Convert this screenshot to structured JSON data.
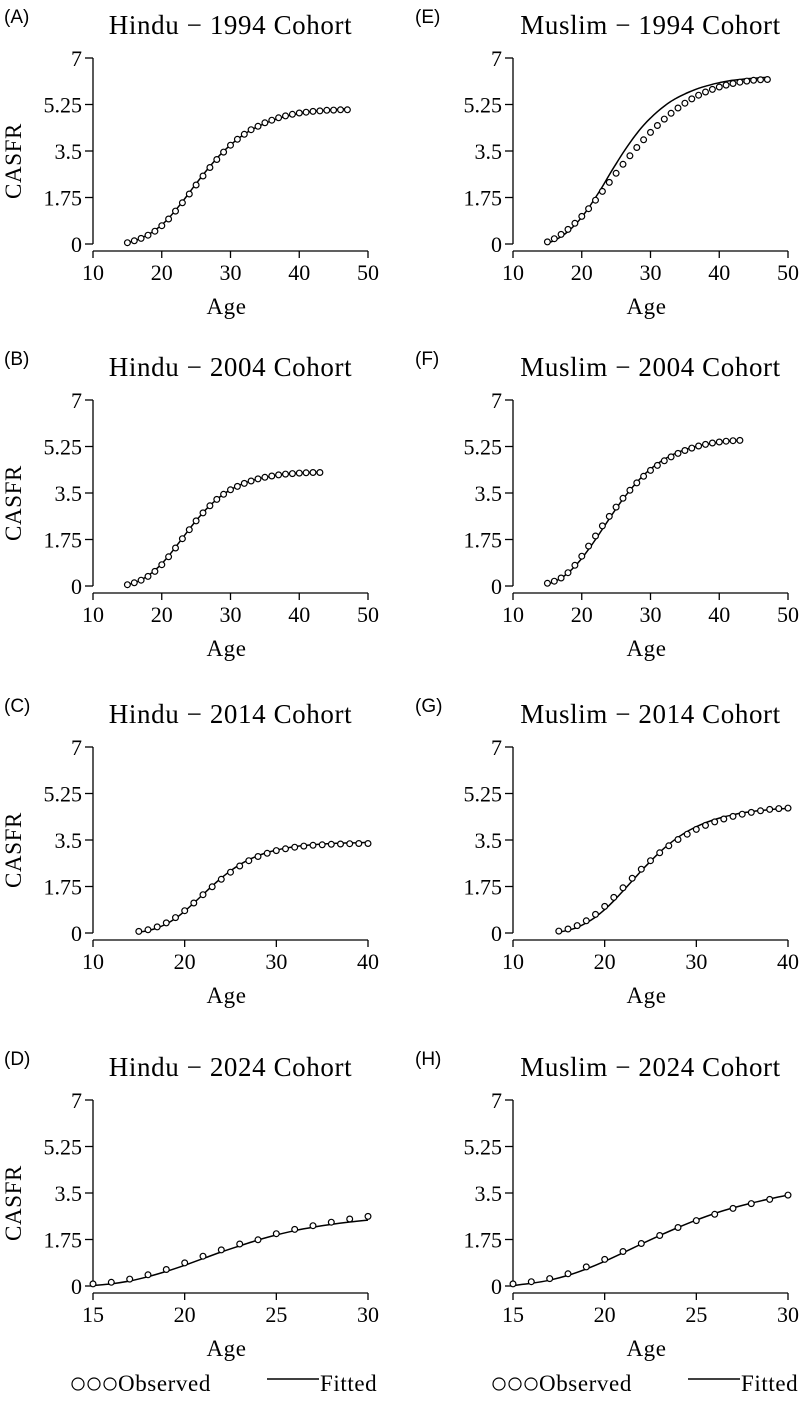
{
  "legend": [
    {
      "observed_label": "Observed",
      "fitted_label": "Fitted"
    },
    {
      "observed_label": "Observed",
      "fitted_label": "Fitted"
    }
  ],
  "chart_data": [
    {
      "panel": "(A)",
      "title": "Hindu − 1994 Cohort",
      "type": "line",
      "xlabel": "Age",
      "ylabel": "CASFR",
      "xlim": [
        10,
        50
      ],
      "ylim": [
        0,
        7
      ],
      "xticks": [
        "10",
        "20",
        "30",
        "40",
        "50"
      ],
      "yticks": [
        "0",
        "1.75",
        "3.5",
        "5.25",
        "7"
      ],
      "grid": false,
      "observed": {
        "x": [
          15,
          16,
          17,
          18,
          19,
          20,
          21,
          22,
          23,
          24,
          25,
          26,
          27,
          28,
          29,
          30,
          31,
          32,
          33,
          34,
          35,
          36,
          37,
          38,
          39,
          40,
          41,
          42,
          43,
          44,
          45,
          46,
          47
        ],
        "y": [
          0.05,
          0.12,
          0.21,
          0.33,
          0.48,
          0.69,
          0.94,
          1.24,
          1.55,
          1.88,
          2.22,
          2.56,
          2.88,
          3.18,
          3.46,
          3.72,
          3.94,
          4.13,
          4.3,
          4.43,
          4.56,
          4.66,
          4.75,
          4.82,
          4.88,
          4.93,
          4.96,
          4.99,
          5.01,
          5.03,
          5.04,
          5.05,
          5.05
        ]
      },
      "fitted": {
        "x": [
          15,
          16,
          17,
          18,
          19,
          20,
          21,
          22,
          23,
          24,
          25,
          26,
          27,
          28,
          29,
          30,
          31,
          32,
          33,
          34,
          35,
          36,
          37,
          38,
          39,
          40,
          41,
          42,
          43,
          44,
          45,
          46,
          47
        ],
        "y": [
          0.05,
          0.12,
          0.22,
          0.35,
          0.52,
          0.72,
          0.97,
          1.27,
          1.59,
          1.93,
          2.27,
          2.6,
          2.92,
          3.22,
          3.49,
          3.73,
          3.94,
          4.13,
          4.29,
          4.42,
          4.54,
          4.64,
          4.73,
          4.8,
          4.86,
          4.91,
          4.95,
          4.99,
          5.02,
          5.04,
          5.06,
          5.08,
          5.09
        ]
      }
    },
    {
      "panel": "(B)",
      "title": "Hindu − 2004 Cohort",
      "type": "line",
      "xlabel": "Age",
      "ylabel": "CASFR",
      "xlim": [
        10,
        50
      ],
      "ylim": [
        0,
        7
      ],
      "xticks": [
        "10",
        "20",
        "30",
        "40",
        "50"
      ],
      "yticks": [
        "0",
        "1.75",
        "3.5",
        "5.25",
        "7"
      ],
      "grid": false,
      "observed": {
        "x": [
          15,
          16,
          17,
          18,
          19,
          20,
          21,
          22,
          23,
          24,
          25,
          26,
          27,
          28,
          29,
          30,
          31,
          32,
          33,
          34,
          35,
          36,
          37,
          38,
          39,
          40,
          41,
          42,
          43
        ],
        "y": [
          0.05,
          0.12,
          0.22,
          0.36,
          0.55,
          0.8,
          1.1,
          1.43,
          1.78,
          2.12,
          2.45,
          2.75,
          3.02,
          3.26,
          3.45,
          3.62,
          3.75,
          3.86,
          3.95,
          4.03,
          4.09,
          4.14,
          4.18,
          4.21,
          4.23,
          4.25,
          4.26,
          4.27,
          4.27
        ]
      },
      "fitted": {
        "x": [
          15,
          16,
          17,
          18,
          19,
          20,
          21,
          22,
          23,
          24,
          25,
          26,
          27,
          28,
          29,
          30,
          31,
          32,
          33,
          34,
          35,
          36,
          37,
          38,
          39,
          40,
          41,
          42,
          43
        ],
        "y": [
          0.05,
          0.12,
          0.23,
          0.39,
          0.59,
          0.84,
          1.13,
          1.46,
          1.8,
          2.14,
          2.46,
          2.76,
          3.03,
          3.26,
          3.46,
          3.62,
          3.76,
          3.87,
          3.96,
          4.03,
          4.09,
          4.14,
          4.18,
          4.21,
          4.23,
          4.25,
          4.27,
          4.28,
          4.29
        ]
      }
    },
    {
      "panel": "(C)",
      "title": "Hindu − 2014 Cohort",
      "type": "line",
      "xlabel": "Age",
      "ylabel": "CASFR",
      "xlim": [
        10,
        40
      ],
      "ylim": [
        0,
        7
      ],
      "xticks": [
        "10",
        "20",
        "30",
        "40"
      ],
      "yticks": [
        "0",
        "1.75",
        "3.5",
        "5.25",
        "7"
      ],
      "grid": false,
      "observed": {
        "x": [
          15,
          16,
          17,
          18,
          19,
          20,
          21,
          22,
          23,
          24,
          25,
          26,
          27,
          28,
          29,
          30,
          31,
          32,
          33,
          34,
          35,
          36,
          37,
          38,
          39,
          40
        ],
        "y": [
          0.06,
          0.12,
          0.23,
          0.38,
          0.58,
          0.84,
          1.13,
          1.44,
          1.74,
          2.02,
          2.29,
          2.52,
          2.72,
          2.88,
          3.0,
          3.1,
          3.17,
          3.23,
          3.27,
          3.3,
          3.32,
          3.34,
          3.35,
          3.36,
          3.37,
          3.37
        ]
      },
      "fitted": {
        "x": [
          15,
          16,
          17,
          18,
          19,
          20,
          21,
          22,
          23,
          24,
          25,
          26,
          27,
          28,
          29,
          30,
          31,
          32,
          33,
          34,
          35,
          36,
          37,
          38,
          39,
          40
        ],
        "y": [
          0.03,
          0.09,
          0.19,
          0.34,
          0.55,
          0.82,
          1.13,
          1.45,
          1.77,
          2.07,
          2.34,
          2.57,
          2.76,
          2.91,
          3.03,
          3.12,
          3.19,
          3.25,
          3.29,
          3.32,
          3.35,
          3.37,
          3.38,
          3.39,
          3.4,
          3.41
        ]
      }
    },
    {
      "panel": "(D)",
      "title": "Hindu − 2024 Cohort",
      "type": "line",
      "xlabel": "Age",
      "ylabel": "CASFR",
      "xlim": [
        15,
        30
      ],
      "ylim": [
        0,
        7
      ],
      "xticks": [
        "15",
        "20",
        "25",
        "30"
      ],
      "yticks": [
        "0",
        "1.75",
        "3.5",
        "5.25",
        "7"
      ],
      "grid": false,
      "observed": {
        "x": [
          15,
          16,
          17,
          18,
          19,
          20,
          21,
          22,
          23,
          24,
          25,
          26,
          27,
          28,
          29,
          30
        ],
        "y": [
          0.08,
          0.14,
          0.26,
          0.42,
          0.62,
          0.87,
          1.12,
          1.36,
          1.58,
          1.74,
          1.97,
          2.13,
          2.27,
          2.4,
          2.52,
          2.62
        ]
      },
      "fitted": {
        "x": [
          15,
          16,
          17,
          18,
          19,
          20,
          21,
          22,
          23,
          24,
          25,
          26,
          27,
          28,
          29,
          30
        ],
        "y": [
          0.02,
          0.08,
          0.19,
          0.35,
          0.55,
          0.78,
          1.03,
          1.28,
          1.51,
          1.73,
          1.92,
          2.08,
          2.21,
          2.32,
          2.41,
          2.48
        ]
      }
    },
    {
      "panel": "(E)",
      "title": "Muslim − 1994 Cohort",
      "type": "line",
      "xlabel": "Age",
      "ylabel": "",
      "xlim": [
        10,
        50
      ],
      "ylim": [
        0,
        7
      ],
      "xticks": [
        "10",
        "20",
        "30",
        "40",
        "50"
      ],
      "yticks": [
        "0",
        "1.75",
        "3.5",
        "5.25",
        "7"
      ],
      "grid": false,
      "observed": {
        "x": [
          15,
          16,
          17,
          18,
          19,
          20,
          21,
          22,
          23,
          24,
          25,
          26,
          27,
          28,
          29,
          30,
          31,
          32,
          33,
          34,
          35,
          36,
          37,
          38,
          39,
          40,
          41,
          42,
          43,
          44,
          45,
          46,
          47
        ],
        "y": [
          0.08,
          0.2,
          0.36,
          0.55,
          0.78,
          1.04,
          1.33,
          1.65,
          1.98,
          2.32,
          2.66,
          3.0,
          3.32,
          3.63,
          3.92,
          4.2,
          4.46,
          4.7,
          4.92,
          5.12,
          5.3,
          5.46,
          5.6,
          5.72,
          5.82,
          5.91,
          5.98,
          6.04,
          6.09,
          6.13,
          6.16,
          6.18,
          6.19
        ]
      },
      "fitted": {
        "x": [
          15,
          16,
          17,
          18,
          19,
          20,
          21,
          22,
          23,
          24,
          25,
          26,
          27,
          28,
          29,
          30,
          31,
          32,
          33,
          34,
          35,
          36,
          37,
          38,
          39,
          40,
          41,
          42,
          43,
          44,
          45,
          46,
          47
        ],
        "y": [
          0.03,
          0.13,
          0.28,
          0.47,
          0.72,
          1.01,
          1.36,
          1.75,
          2.16,
          2.6,
          3.02,
          3.43,
          3.81,
          4.16,
          4.47,
          4.74,
          4.98,
          5.19,
          5.37,
          5.52,
          5.65,
          5.76,
          5.86,
          5.94,
          6.01,
          6.07,
          6.12,
          6.16,
          6.19,
          6.22,
          6.24,
          6.26,
          6.27
        ]
      }
    },
    {
      "panel": "(F)",
      "title": "Muslim − 2004 Cohort",
      "type": "line",
      "xlabel": "Age",
      "ylabel": "",
      "xlim": [
        10,
        50
      ],
      "ylim": [
        0,
        7
      ],
      "xticks": [
        "10",
        "20",
        "30",
        "40",
        "50"
      ],
      "yticks": [
        "0",
        "1.75",
        "3.5",
        "5.25",
        "7"
      ],
      "grid": false,
      "observed": {
        "x": [
          15,
          16,
          17,
          18,
          19,
          20,
          21,
          22,
          23,
          24,
          25,
          26,
          27,
          28,
          29,
          30,
          31,
          32,
          33,
          34,
          35,
          36,
          37,
          38,
          39,
          40,
          41,
          42,
          43
        ],
        "y": [
          0.1,
          0.18,
          0.3,
          0.5,
          0.78,
          1.12,
          1.5,
          1.88,
          2.26,
          2.62,
          2.97,
          3.3,
          3.6,
          3.88,
          4.13,
          4.35,
          4.54,
          4.71,
          4.86,
          4.99,
          5.1,
          5.19,
          5.27,
          5.33,
          5.38,
          5.42,
          5.45,
          5.47,
          5.48
        ]
      },
      "fitted": {
        "x": [
          15,
          16,
          17,
          18,
          19,
          20,
          21,
          22,
          23,
          24,
          25,
          26,
          27,
          28,
          29,
          30,
          31,
          32,
          33,
          34,
          35,
          36,
          37,
          38,
          39,
          40,
          41,
          42,
          43
        ],
        "y": [
          0.07,
          0.16,
          0.3,
          0.49,
          0.74,
          1.04,
          1.38,
          1.75,
          2.14,
          2.53,
          2.91,
          3.27,
          3.6,
          3.9,
          4.17,
          4.4,
          4.6,
          4.77,
          4.91,
          5.03,
          5.13,
          5.21,
          5.28,
          5.33,
          5.37,
          5.41,
          5.44,
          5.46,
          5.48
        ]
      }
    },
    {
      "panel": "(G)",
      "title": "Muslim − 2014 Cohort",
      "type": "line",
      "xlabel": "Age",
      "ylabel": "",
      "xlim": [
        10,
        40
      ],
      "ylim": [
        0,
        7
      ],
      "xticks": [
        "10",
        "20",
        "30",
        "40"
      ],
      "yticks": [
        "0",
        "1.75",
        "3.5",
        "5.25",
        "7"
      ],
      "grid": false,
      "observed": {
        "x": [
          15,
          16,
          17,
          18,
          19,
          20,
          21,
          22,
          23,
          24,
          25,
          26,
          27,
          28,
          29,
          30,
          31,
          32,
          33,
          34,
          35,
          36,
          37,
          38,
          39,
          40
        ],
        "y": [
          0.07,
          0.15,
          0.28,
          0.46,
          0.7,
          1.0,
          1.34,
          1.7,
          2.06,
          2.4,
          2.72,
          3.02,
          3.28,
          3.52,
          3.72,
          3.9,
          4.05,
          4.18,
          4.29,
          4.39,
          4.47,
          4.54,
          4.6,
          4.65,
          4.68,
          4.7
        ]
      },
      "fitted": {
        "x": [
          15,
          16,
          17,
          18,
          19,
          20,
          21,
          22,
          23,
          24,
          25,
          26,
          27,
          28,
          29,
          30,
          31,
          32,
          33,
          34,
          35,
          36,
          37,
          38,
          39,
          40
        ],
        "y": [
          0.03,
          0.1,
          0.21,
          0.38,
          0.6,
          0.88,
          1.21,
          1.58,
          1.96,
          2.34,
          2.7,
          3.04,
          3.34,
          3.6,
          3.82,
          4.0,
          4.15,
          4.27,
          4.37,
          4.45,
          4.52,
          4.57,
          4.61,
          4.64,
          4.67,
          4.69
        ]
      }
    },
    {
      "panel": "(H)",
      "title": "Muslim − 2024 Cohort",
      "type": "line",
      "xlabel": "Age",
      "ylabel": "",
      "xlim": [
        15,
        30
      ],
      "ylim": [
        0,
        7
      ],
      "xticks": [
        "15",
        "20",
        "25",
        "30"
      ],
      "yticks": [
        "0",
        "1.75",
        "3.5",
        "5.25",
        "7"
      ],
      "grid": false,
      "observed": {
        "x": [
          15,
          16,
          17,
          18,
          19,
          20,
          21,
          22,
          23,
          24,
          25,
          26,
          27,
          28,
          29,
          30
        ],
        "y": [
          0.08,
          0.16,
          0.28,
          0.46,
          0.72,
          1.0,
          1.3,
          1.6,
          1.9,
          2.2,
          2.46,
          2.7,
          2.92,
          3.1,
          3.26,
          3.42
        ]
      },
      "fitted": {
        "x": [
          15,
          16,
          17,
          18,
          19,
          20,
          21,
          22,
          23,
          24,
          25,
          26,
          27,
          28,
          29,
          30
        ],
        "y": [
          0.02,
          0.1,
          0.22,
          0.4,
          0.64,
          0.93,
          1.25,
          1.58,
          1.9,
          2.2,
          2.48,
          2.73,
          2.94,
          3.12,
          3.28,
          3.42
        ]
      }
    }
  ]
}
